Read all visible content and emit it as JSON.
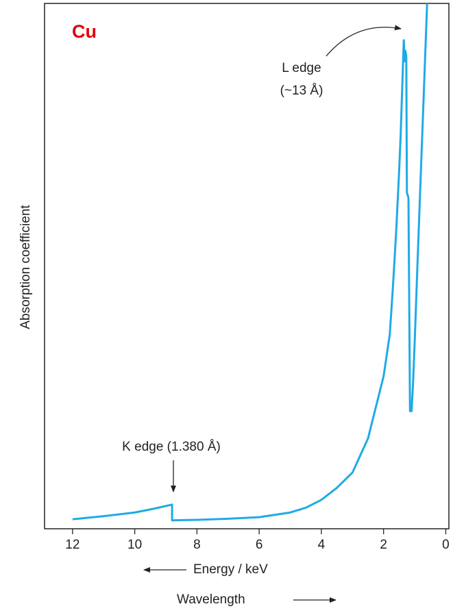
{
  "chart_data": {
    "type": "line",
    "label": "Cu",
    "ylabel": "Absorption coefficient",
    "xlabel": "Energy / keV",
    "xlabel2": "Wavelength",
    "annotations": [
      "L edge",
      "(~13 Å)",
      "K edge (1.380 Å)"
    ],
    "x": [
      12,
      11,
      10,
      9.4,
      8.8,
      8.8,
      8,
      7,
      6,
      5,
      4.5,
      4,
      3.5,
      3,
      2.5,
      2,
      1.8,
      1.7,
      1.6,
      1.5,
      1.45,
      1.4,
      1.35,
      1.32,
      1.3,
      1.27,
      1.25,
      1.2,
      1.15,
      1.1,
      1.05,
      1.0,
      0.9,
      0.8,
      0.7,
      0.6
    ],
    "values": [
      1.8,
      2.4,
      3.1,
      3.8,
      4.6,
      1.6,
      1.7,
      1.9,
      2.2,
      3.1,
      4.0,
      5.5,
      7.8,
      10.7,
      17.2,
      29,
      37,
      46,
      56,
      68,
      75,
      84,
      93,
      89,
      91,
      90,
      64,
      63,
      22.4,
      22.4,
      28,
      35.5,
      52,
      68,
      84,
      100
    ],
    "color": "#1eaae6",
    "xlim": [
      12.9,
      -0.1
    ],
    "ylim": [
      0,
      100
    ],
    "xticks": [
      12,
      10,
      8,
      6,
      4,
      2,
      0
    ]
  }
}
